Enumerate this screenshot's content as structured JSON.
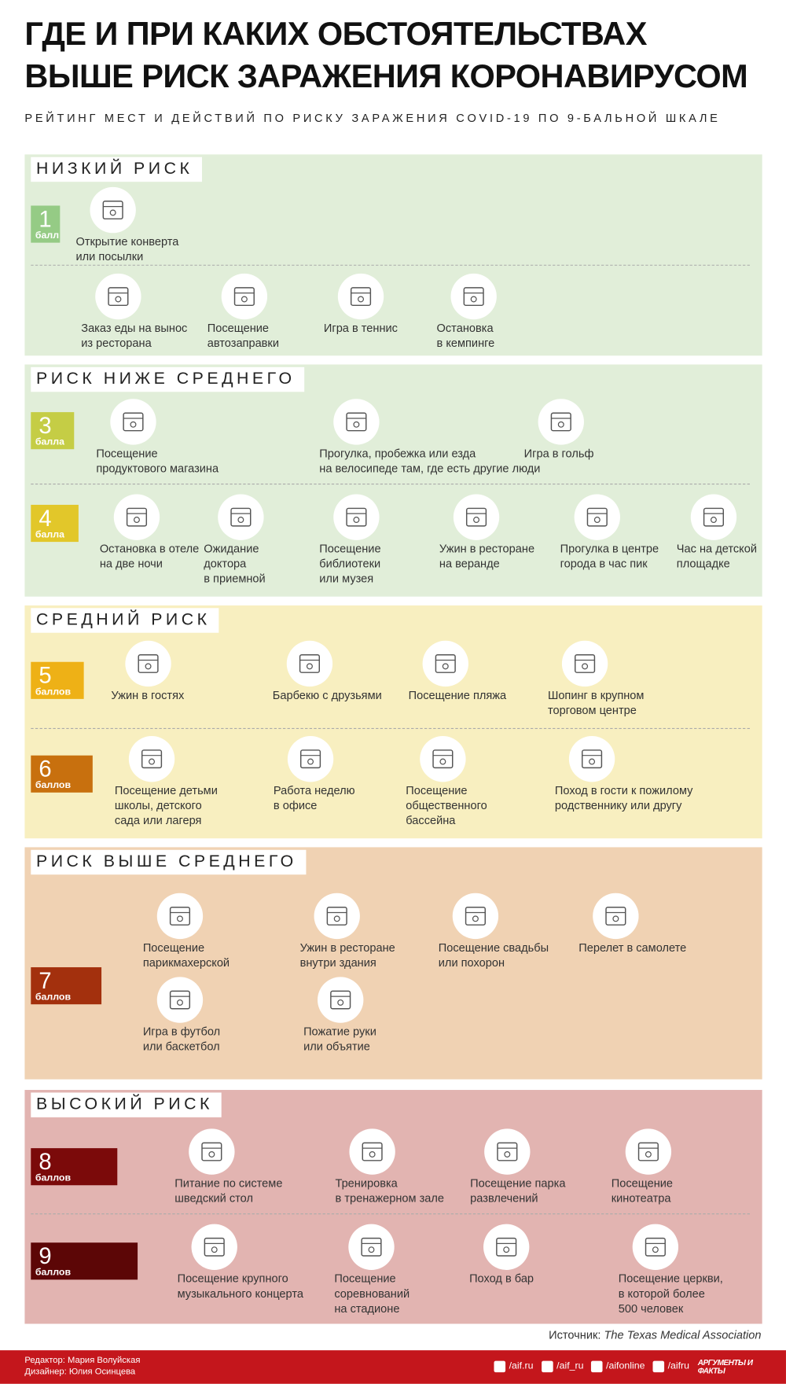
{
  "header": {
    "title_lines": [
      "ГДЕ И ПРИ КАКИХ ОБСТОЯТЕЛЬСТВАХ",
      "ВЫШЕ РИСК ЗАРАЖЕНИЯ КОРОНАВИРУСОМ"
    ],
    "subtitle": "РЕЙТИНГ МЕСТ И ДЕЙСТВИЙ ПО РИСКУ ЗАРАЖЕНИЯ COVID-19 ПО 9-БАЛЬНОЙ ШКАЛЕ"
  },
  "sections": [
    {
      "title": "НИЗКИЙ РИСК",
      "levels": [
        {
          "score": "1",
          "unit": "балл",
          "items": [
            {
              "text": [
                "Открытие конверта",
                "или посылки"
              ]
            }
          ]
        },
        {
          "items": [
            {
              "text": [
                "Заказ еды на вынос",
                "из ресторана"
              ]
            },
            {
              "text": [
                "Посещение",
                "автозаправки"
              ]
            },
            {
              "text": [
                "Игра в теннис"
              ]
            },
            {
              "text": [
                "Остановка",
                "в кемпинге"
              ]
            }
          ]
        }
      ]
    },
    {
      "title": "РИСК НИЖЕ СРЕДНЕГО",
      "levels": [
        {
          "score": "3",
          "unit": "балла",
          "items": [
            {
              "text": [
                "Посещение",
                "продуктового магазина"
              ]
            },
            {
              "text": [
                "Прогулка, пробежка или езда",
                "на велосипеде там, где есть другие люди"
              ]
            },
            {
              "text": [
                "Игра в гольф"
              ]
            }
          ]
        },
        {
          "score": "4",
          "unit": "балла",
          "items": [
            {
              "text": [
                "Остановка в отеле",
                "на две ночи"
              ]
            },
            {
              "text": [
                "Ожидание",
                "доктора",
                "в приемной"
              ]
            },
            {
              "text": [
                "Посещение",
                "библиотеки",
                "или музея"
              ]
            },
            {
              "text": [
                "Ужин в ресторане",
                "на веранде"
              ]
            },
            {
              "text": [
                "Прогулка в центре",
                "города в час пик"
              ]
            },
            {
              "text": [
                "Час на детской",
                "площадке"
              ]
            }
          ]
        }
      ]
    },
    {
      "title": "СРЕДНИЙ РИСК",
      "levels": [
        {
          "score": "5",
          "unit": "баллов",
          "items": [
            {
              "text": [
                "Ужин в гостях"
              ]
            },
            {
              "text": [
                "Барбекю с друзьями"
              ]
            },
            {
              "text": [
                "Посещение пляжа"
              ]
            },
            {
              "text": [
                "Шопинг в крупном",
                "торговом центре"
              ]
            }
          ]
        },
        {
          "score": "6",
          "unit": "баллов",
          "items": [
            {
              "text": [
                "Посещение детьми",
                "школы, детского",
                "сада или лагеря"
              ]
            },
            {
              "text": [
                "Работа неделю",
                "в офисе"
              ]
            },
            {
              "text": [
                "Посещение",
                "общественного",
                "бассейна"
              ]
            },
            {
              "text": [
                "Поход в гости к пожилому",
                "родственнику или другу"
              ]
            }
          ]
        }
      ]
    },
    {
      "title": "РИСК ВЫШЕ СРЕДНЕГО",
      "levels": [
        {
          "score": "7",
          "unit": "баллов",
          "items": [
            {
              "text": [
                "Посещение",
                "парикмахерской"
              ]
            },
            {
              "text": [
                "Ужин в ресторане",
                "внутри здания"
              ]
            },
            {
              "text": [
                "Посещение свадьбы",
                "или похорон"
              ]
            },
            {
              "text": [
                "Перелет в самолете"
              ]
            },
            {
              "text": [
                "Игра в футбол",
                "или баскетбол"
              ]
            },
            {
              "text": [
                "Пожатие руки",
                "или объятие"
              ]
            }
          ]
        }
      ]
    },
    {
      "title": "ВЫСОКИЙ РИСК",
      "levels": [
        {
          "score": "8",
          "unit": "баллов",
          "items": [
            {
              "text": [
                "Питание по системе",
                "шведский стол"
              ]
            },
            {
              "text": [
                "Тренировка",
                "в тренажерном зале"
              ]
            },
            {
              "text": [
                "Посещение парка",
                "развлечений"
              ]
            },
            {
              "text": [
                "Посещение",
                "кинотеатра"
              ]
            }
          ]
        },
        {
          "score": "9",
          "unit": "баллов",
          "items": [
            {
              "text": [
                "Посещение крупного",
                "музыкального концерта"
              ]
            },
            {
              "text": [
                "Посещение",
                "соревнований",
                "на стадионе"
              ]
            },
            {
              "text": [
                "Поход в бар"
              ]
            },
            {
              "text": [
                "Посещение церкви,",
                "в которой более",
                "500 человек"
              ]
            }
          ]
        }
      ]
    }
  ],
  "source": {
    "label": "Источник:",
    "name": "The Texas Medical Association"
  },
  "footer": {
    "credits": [
      "Редактор: Мария Волуйская",
      "Дизайнер: Юлия Осинцева"
    ],
    "social": [
      "/aif.ru",
      "/aif_ru",
      "/aifonline",
      "/aifru"
    ],
    "logo": "АРГУМЕНТЫ И ФАКТЫ"
  }
}
